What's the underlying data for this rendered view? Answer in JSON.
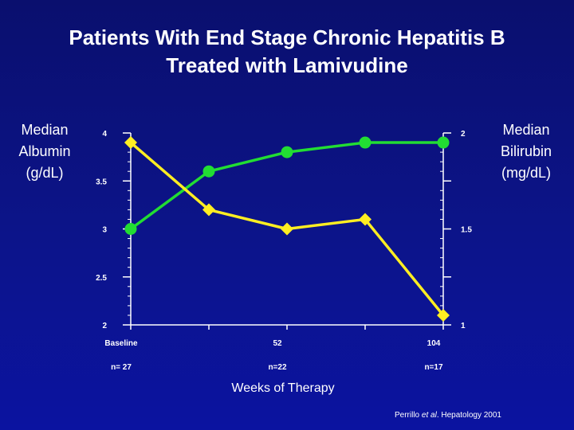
{
  "title": {
    "line1": "Patients With End Stage Chronic Hepatitis B",
    "line2": "Treated with Lamivudine"
  },
  "left_axis_title": [
    "Median",
    "Albumin",
    "(g/dL)"
  ],
  "right_axis_title": [
    "Median",
    "Bilirubin",
    "(mg/dL)"
  ],
  "xlabel": "Weeks of Therapy",
  "citation": {
    "authors": "Perrillo ",
    "etal": "et al",
    "rest": ". Hepatology 2001"
  },
  "colors": {
    "albumin": "#22dd33",
    "bilirubin": "#ffee22",
    "axis": "#ffffff"
  },
  "chart_data": {
    "type": "line",
    "x": [
      0,
      26,
      52,
      78,
      104
    ],
    "x_tick_labels": [
      {
        "x": 0,
        "label": "Baseline",
        "n": "n= 27"
      },
      {
        "x": 52,
        "label": "52",
        "n": "n=22"
      },
      {
        "x": 104,
        "label": "104",
        "n": "n=17"
      }
    ],
    "xlabel": "Weeks of Therapy",
    "y_left": {
      "label": "Median Albumin (g/dL)",
      "lim": [
        2,
        4
      ],
      "ticks": [
        "2",
        "2.5",
        "3",
        "3.5",
        "4"
      ],
      "tick_values": [
        2,
        2.5,
        3,
        3.5,
        4
      ]
    },
    "y_right": {
      "label": "Median Bilirubin (mg/dL)",
      "lim": [
        1,
        2
      ],
      "ticks": [
        "1",
        "1.5",
        "2"
      ],
      "tick_values": [
        1,
        1.5,
        2
      ]
    },
    "series": [
      {
        "key": "albumin",
        "axis": "left",
        "marker": "circle",
        "values": [
          3.0,
          3.6,
          3.8,
          3.9,
          3.9
        ]
      },
      {
        "key": "bilirubin",
        "axis": "right",
        "marker": "diamond",
        "values": [
          1.95,
          1.6,
          1.5,
          1.55,
          1.05
        ]
      }
    ],
    "grid": false,
    "legend": "none"
  }
}
